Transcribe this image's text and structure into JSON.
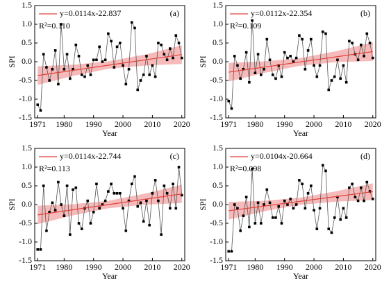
{
  "chart_data": [
    {
      "type": "line",
      "panel_label": "(a)",
      "r2_label": "R²=0.110",
      "x_label": "Year",
      "y_label": "SPI",
      "x": [
        1971,
        1972,
        1973,
        1974,
        1975,
        1976,
        1977,
        1978,
        1979,
        1980,
        1981,
        1982,
        1983,
        1984,
        1985,
        1986,
        1987,
        1988,
        1989,
        1990,
        1991,
        1992,
        1993,
        1994,
        1995,
        1996,
        1997,
        1998,
        1999,
        2000,
        2001,
        2002,
        2003,
        2004,
        2005,
        2006,
        2007,
        2008,
        2009,
        2010,
        2011,
        2012,
        2013,
        2014,
        2015,
        2016,
        2017,
        2018,
        2019,
        2020
      ],
      "series": [
        {
          "color": "#000000",
          "values": [
            -1.15,
            -1.3,
            0.2,
            -0.15,
            -0.5,
            -0.2,
            0.3,
            -0.6,
            1.0,
            -0.2,
            0.2,
            -0.45,
            -0.2,
            0.45,
            0.15,
            -0.35,
            -0.4,
            -0.1,
            -0.35,
            0.05,
            0.05,
            0.4,
            0.0,
            0.05,
            0.75,
            0.55,
            -0.15,
            0.4,
            0.5,
            -0.1,
            -0.6,
            -0.2,
            1.05,
            0.9,
            -0.75,
            -0.5,
            -0.35,
            0.15,
            -0.35,
            -0.1,
            -0.4,
            0.5,
            0.45,
            0.2,
            0.05,
            0.35,
            0.1,
            0.7,
            0.5,
            0.1
          ]
        }
      ],
      "trend": {
        "name": "y=0.0114x-22.837",
        "color": "#e0413a",
        "x": [
          1971,
          2020
        ],
        "values": [
          -0.368,
          0.191
        ]
      },
      "band": {
        "color": "#f4a3a3",
        "x": [
          1971,
          1983,
          1995,
          2008,
          2020
        ],
        "lower": [
          -0.62,
          -0.38,
          -0.19,
          -0.1,
          -0.06
        ],
        "upper": [
          -0.12,
          -0.08,
          0.01,
          0.2,
          0.44
        ]
      },
      "xlim": [
        1970,
        2021
      ],
      "ylim": [
        -1.5,
        1.5
      ],
      "xticks": [
        1971,
        1980,
        1990,
        2000,
        2010,
        2020
      ],
      "yticks": [
        -1.5,
        {
          "value": -1,
          "label": "-1.0"
        },
        -0.5,
        {
          "value": 0,
          "label": "0.0"
        },
        0.5,
        {
          "value": 1,
          "label": "1.0"
        },
        1.5
      ]
    },
    {
      "type": "line",
      "panel_label": "(b)",
      "r2_label": "R²=0.109",
      "x_label": "Year",
      "y_label": "SPI",
      "x": [
        1971,
        1972,
        1973,
        1974,
        1975,
        1976,
        1977,
        1978,
        1979,
        1980,
        1981,
        1982,
        1983,
        1984,
        1985,
        1986,
        1987,
        1988,
        1989,
        1990,
        1991,
        1992,
        1993,
        1994,
        1995,
        1996,
        1997,
        1998,
        1999,
        2000,
        2001,
        2002,
        2003,
        2004,
        2005,
        2006,
        2007,
        2008,
        2009,
        2010,
        2011,
        2012,
        2013,
        2014,
        2015,
        2016,
        2017,
        2018,
        2019,
        2020
      ],
      "series": [
        {
          "color": "#000000",
          "values": [
            -1.05,
            -1.25,
            0.15,
            -0.1,
            -0.45,
            -0.2,
            0.25,
            -0.55,
            1.1,
            -0.3,
            0.2,
            -0.35,
            -0.2,
            0.6,
            0.05,
            -0.35,
            -0.45,
            -0.1,
            -0.4,
            0.25,
            0.1,
            0.15,
            0.0,
            0.1,
            0.7,
            0.6,
            -0.2,
            0.3,
            0.6,
            -0.1,
            -0.4,
            -0.1,
            0.8,
            0.75,
            -0.75,
            -0.5,
            -0.4,
            0.05,
            -0.45,
            -0.1,
            -0.55,
            0.55,
            0.5,
            0.2,
            0.05,
            0.45,
            0.15,
            0.75,
            0.5,
            0.1
          ]
        }
      ],
      "trend": {
        "name": "y=0.0112x-22.354",
        "color": "#e0413a",
        "x": [
          1971,
          2020
        ],
        "values": [
          -0.279,
          0.27
        ]
      },
      "band": {
        "color": "#f4a3a3",
        "x": [
          1971,
          1983,
          1995,
          2008,
          2020
        ],
        "lower": [
          -0.53,
          -0.3,
          -0.11,
          -0.01,
          0.02
        ],
        "upper": [
          -0.03,
          0.01,
          0.09,
          0.29,
          0.52
        ]
      },
      "xlim": [
        1970,
        2021
      ],
      "ylim": [
        -1.5,
        1.5
      ],
      "xticks": [
        1971,
        1980,
        1990,
        2000,
        2010,
        2020
      ],
      "yticks": [
        -1.5,
        {
          "value": -1,
          "label": "-1.0"
        },
        -0.5,
        {
          "value": 0,
          "label": "0.0"
        },
        0.5,
        {
          "value": 1,
          "label": "1.0"
        },
        1.5
      ]
    },
    {
      "type": "line",
      "panel_label": "(c)",
      "r2_label": "R²=0.113",
      "x_label": "Year",
      "y_label": "SPI",
      "x": [
        1971,
        1972,
        1973,
        1974,
        1975,
        1976,
        1977,
        1978,
        1979,
        1980,
        1981,
        1982,
        1983,
        1984,
        1985,
        1986,
        1987,
        1988,
        1989,
        1990,
        1991,
        1992,
        1993,
        1994,
        1995,
        1996,
        1997,
        1998,
        1999,
        2000,
        2001,
        2002,
        2003,
        2004,
        2005,
        2006,
        2007,
        2008,
        2009,
        2010,
        2011,
        2012,
        2013,
        2014,
        2015,
        2016,
        2017,
        2018,
        2019,
        2020
      ],
      "series": [
        {
          "color": "#000000",
          "values": [
            -1.2,
            -1.2,
            0.5,
            -0.7,
            -0.2,
            0.05,
            -0.15,
            0.6,
            0.0,
            -0.3,
            0.5,
            -0.8,
            0.4,
            0.45,
            -0.5,
            -0.65,
            -0.1,
            0.1,
            -0.5,
            -0.2,
            0.55,
            -0.1,
            0.0,
            0.1,
            0.35,
            0.55,
            0.3,
            0.3,
            0.3,
            -0.1,
            -0.7,
            0.1,
            0.55,
            0.75,
            -0.05,
            0.05,
            -0.45,
            0.1,
            -0.55,
            0.3,
            0.65,
            0.1,
            -0.8,
            0.5,
            0.3,
            -0.1,
            0.55,
            -0.1,
            1.0,
            0.25
          ]
        }
      ],
      "trend": {
        "name": "y=0.0114x-22.744",
        "color": "#e0413a",
        "x": [
          1971,
          2020
        ],
        "values": [
          -0.275,
          0.284
        ]
      },
      "band": {
        "color": "#f4a3a3",
        "x": [
          1971,
          1983,
          1995,
          2008,
          2020
        ],
        "lower": [
          -0.52,
          -0.29,
          -0.1,
          0.0,
          0.04
        ],
        "upper": [
          -0.03,
          0.01,
          0.1,
          0.3,
          0.53
        ]
      },
      "xlim": [
        1970,
        2021
      ],
      "ylim": [
        -1.5,
        1.5
      ],
      "xticks": [
        1971,
        1980,
        1990,
        2000,
        2010,
        2020
      ],
      "yticks": [
        -1.5,
        {
          "value": -1,
          "label": "-1.0"
        },
        -0.5,
        {
          "value": 0,
          "label": "0.0"
        },
        0.5,
        {
          "value": 1,
          "label": "1.0"
        },
        1.5
      ]
    },
    {
      "type": "line",
      "panel_label": "(d)",
      "r2_label": "R²=0.098",
      "x_label": "Year",
      "y_label": "SPI",
      "x": [
        1971,
        1972,
        1973,
        1974,
        1975,
        1976,
        1977,
        1978,
        1979,
        1980,
        1981,
        1982,
        1983,
        1984,
        1985,
        1986,
        1987,
        1988,
        1989,
        1990,
        1991,
        1992,
        1993,
        1994,
        1995,
        1996,
        1997,
        1998,
        1999,
        2000,
        2001,
        2002,
        2003,
        2004,
        2005,
        2006,
        2007,
        2008,
        2009,
        2010,
        2011,
        2012,
        2013,
        2014,
        2015,
        2016,
        2017,
        2018,
        2019,
        2020
      ],
      "series": [
        {
          "color": "#000000",
          "values": [
            -1.25,
            -1.25,
            0.0,
            -0.1,
            -0.7,
            -0.3,
            0.2,
            -0.6,
            0.95,
            -0.5,
            0.05,
            -0.5,
            0.0,
            0.4,
            0.05,
            -0.35,
            -0.35,
            -0.05,
            -0.5,
            0.1,
            0.0,
            0.15,
            -0.1,
            0.0,
            0.65,
            0.55,
            -0.1,
            0.3,
            0.5,
            -0.15,
            -0.65,
            -0.1,
            1.05,
            0.9,
            -0.65,
            -0.75,
            -0.35,
            0.2,
            -0.4,
            -0.1,
            -0.35,
            0.45,
            0.55,
            0.2,
            0.1,
            0.45,
            0.1,
            0.6,
            0.35,
            0.15
          ]
        }
      ],
      "trend": {
        "name": "y=0.0104x-20.664",
        "color": "#e0413a",
        "x": [
          1971,
          2020
        ],
        "values": [
          -0.166,
          0.344
        ]
      },
      "band": {
        "color": "#f4a3a3",
        "x": [
          1971,
          1983,
          1995,
          2008,
          2020
        ],
        "lower": [
          -0.4,
          -0.18,
          -0.01,
          0.08,
          0.12
        ],
        "upper": [
          0.07,
          0.1,
          0.18,
          0.36,
          0.57
        ]
      },
      "xlim": [
        1970,
        2021
      ],
      "ylim": [
        -1.5,
        1.5
      ],
      "xticks": [
        1971,
        1980,
        1990,
        2000,
        2010,
        2020
      ],
      "yticks": [
        -1.5,
        {
          "value": -1,
          "label": "-1.0"
        },
        -0.5,
        {
          "value": 0,
          "label": "0.0"
        },
        0.5,
        {
          "value": 1,
          "label": "1.0"
        },
        1.5
      ]
    }
  ]
}
